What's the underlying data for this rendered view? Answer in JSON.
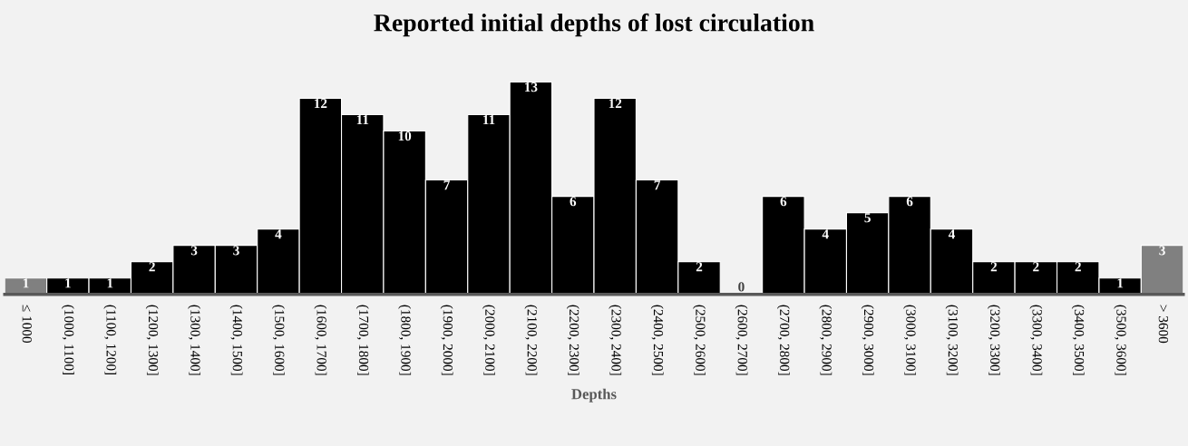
{
  "chart_data": {
    "type": "bar",
    "title": "Reported initial depths of lost circulation",
    "xlabel": "Depths",
    "categories": [
      "≤ 1000",
      "(1000, 1100]",
      "(1100, 1200]",
      "(1200, 1300]",
      "(1300, 1400]",
      "(1400, 1500]",
      "(1500, 1600]",
      "(1600, 1700]",
      "(1700, 1800]",
      "(1800, 1900]",
      "(1900, 2000]",
      "(2000, 2100]",
      "(2100, 2200]",
      "(2200, 2300]",
      "(2300, 2400]",
      "(2400, 2500]",
      "(2500, 2600]",
      "(2600, 2700]",
      "(2700, 2800]",
      "(2800, 2900]",
      "(2900, 3000]",
      "(3000, 3100]",
      "(3100, 3200]",
      "(3200, 3300]",
      "(3300, 3400]",
      "(3400, 3500]",
      "(3500, 3600]",
      "> 3600"
    ],
    "values": [
      1,
      1,
      1,
      2,
      3,
      3,
      4,
      12,
      11,
      10,
      7,
      11,
      13,
      6,
      12,
      7,
      2,
      0,
      6,
      4,
      5,
      6,
      4,
      2,
      2,
      2,
      1,
      3
    ],
    "colors": [
      "#808080",
      "#000000",
      "#000000",
      "#000000",
      "#000000",
      "#000000",
      "#000000",
      "#000000",
      "#000000",
      "#000000",
      "#000000",
      "#000000",
      "#000000",
      "#000000",
      "#000000",
      "#000000",
      "#000000",
      "#000000",
      "#000000",
      "#000000",
      "#000000",
      "#000000",
      "#000000",
      "#000000",
      "#000000",
      "#000000",
      "#000000",
      "#808080"
    ],
    "data_labels": true,
    "grid": false,
    "legend": false
  }
}
